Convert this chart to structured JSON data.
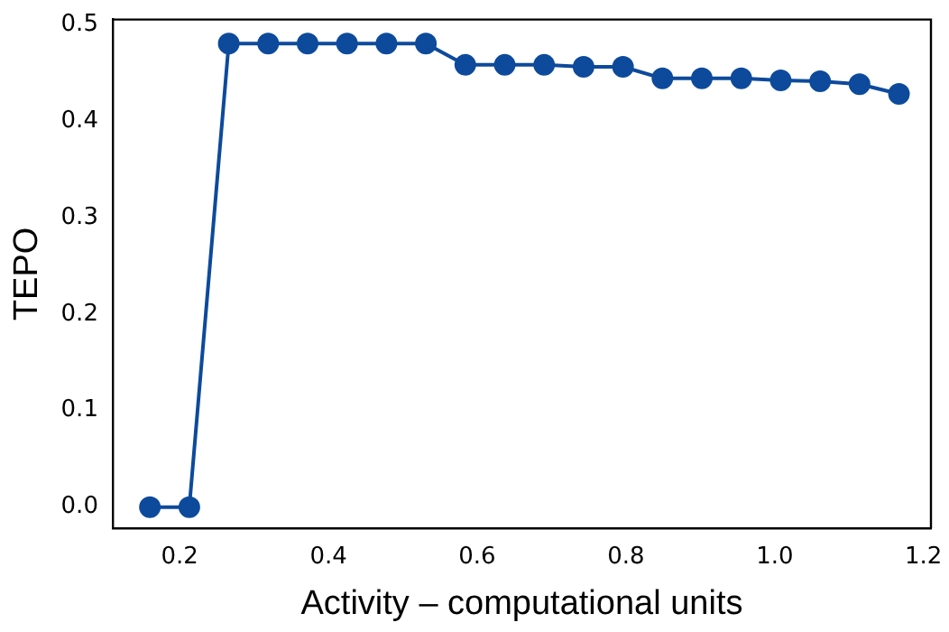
{
  "chart_data": {
    "type": "line",
    "xlabel": "Activity – computational units",
    "ylabel": "TEPO",
    "x": [
      0.16,
      0.213,
      0.266,
      0.319,
      0.372,
      0.425,
      0.478,
      0.531,
      0.584,
      0.637,
      0.69,
      0.743,
      0.796,
      0.849,
      0.902,
      0.955,
      1.008,
      1.061,
      1.114,
      1.167
    ],
    "series": [
      {
        "color": "#0d4a9c",
        "values": [
          0,
          0,
          0.48,
          0.48,
          0.48,
          0.48,
          0.48,
          0.48,
          0.458,
          0.458,
          0.458,
          0.456,
          0.456,
          0.444,
          0.444,
          0.444,
          0.442,
          0.441,
          0.438,
          0.428
        ]
      }
    ],
    "xlim": [
      0.11,
      1.21
    ],
    "ylim": [
      -0.022,
      0.505
    ],
    "xticks": [
      0.2,
      0.4,
      0.6,
      0.8,
      {
        "value": 1,
        "label": "1.0"
      },
      1.2
    ],
    "yticks": [
      {
        "value": 0,
        "label": "0.0"
      },
      0.1,
      0.2,
      0.3,
      0.4,
      0.5
    ],
    "marker": "circle",
    "line_style": "solid",
    "grid": false,
    "legend": false
  }
}
